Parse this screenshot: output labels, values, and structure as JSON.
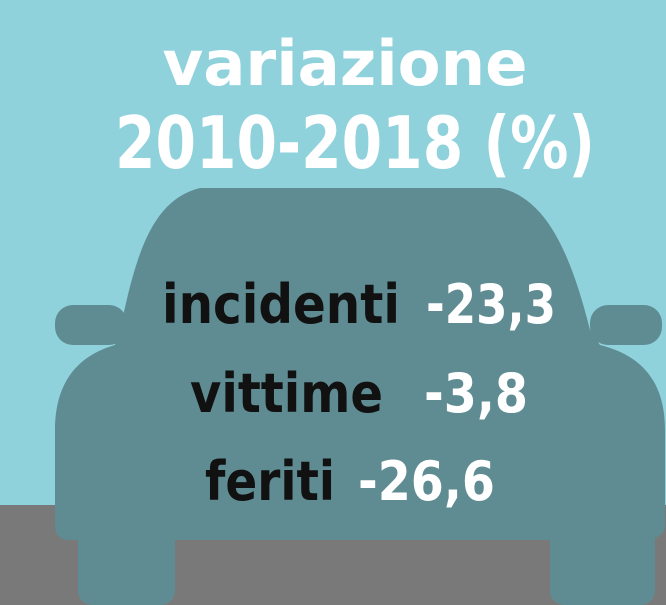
{
  "title": {
    "lines": [
      "variazione",
      "2010-2018 (%)"
    ]
  },
  "items": [
    {
      "label": "incidenti",
      "value": "-23,3"
    },
    {
      "label": "vittime",
      "value": "-3,8"
    },
    {
      "label": "feriti",
      "value": "-26,6"
    }
  ]
}
